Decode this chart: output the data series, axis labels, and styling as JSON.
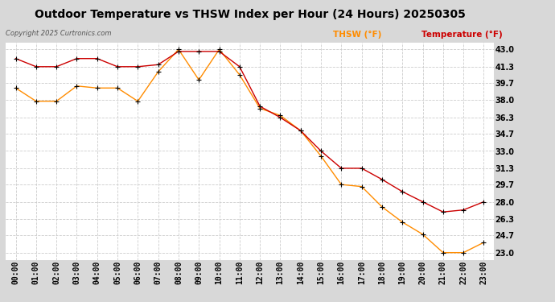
{
  "title": "Outdoor Temperature vs THSW Index per Hour (24 Hours) 20250305",
  "copyright": "Copyright 2025 Curtronics.com",
  "legend_thsw": "THSW (°F)",
  "legend_temp": "Temperature (°F)",
  "hours": [
    "00:00",
    "01:00",
    "02:00",
    "03:00",
    "04:00",
    "05:00",
    "06:00",
    "07:00",
    "08:00",
    "09:00",
    "10:00",
    "11:00",
    "12:00",
    "13:00",
    "14:00",
    "15:00",
    "16:00",
    "17:00",
    "18:00",
    "19:00",
    "20:00",
    "21:00",
    "22:00",
    "23:00"
  ],
  "temperature": [
    42.1,
    41.3,
    41.3,
    42.1,
    42.1,
    41.3,
    41.3,
    41.5,
    42.8,
    42.8,
    42.8,
    41.3,
    37.4,
    36.3,
    35.0,
    33.0,
    31.3,
    31.3,
    30.2,
    29.0,
    28.0,
    27.0,
    27.2,
    28.0
  ],
  "thsw": [
    39.2,
    37.9,
    37.9,
    39.4,
    39.2,
    39.2,
    37.9,
    40.8,
    43.0,
    40.0,
    43.0,
    40.5,
    37.2,
    36.5,
    35.0,
    32.5,
    29.7,
    29.5,
    27.5,
    26.0,
    24.8,
    23.0,
    23.0,
    24.0
  ],
  "ylim_min": 22.3,
  "ylim_max": 43.7,
  "yticks": [
    43.0,
    41.3,
    39.7,
    38.0,
    36.3,
    34.7,
    33.0,
    31.3,
    29.7,
    28.0,
    26.3,
    24.7,
    23.0
  ],
  "temp_color": "#cc0000",
  "thsw_color": "#ff8c00",
  "marker_color": "#000000",
  "plot_bg_color": "#ffffff",
  "fig_bg_color": "#d8d8d8",
  "grid_color": "#cccccc",
  "title_fontsize": 10,
  "axis_fontsize": 7,
  "legend_fontsize": 7.5
}
